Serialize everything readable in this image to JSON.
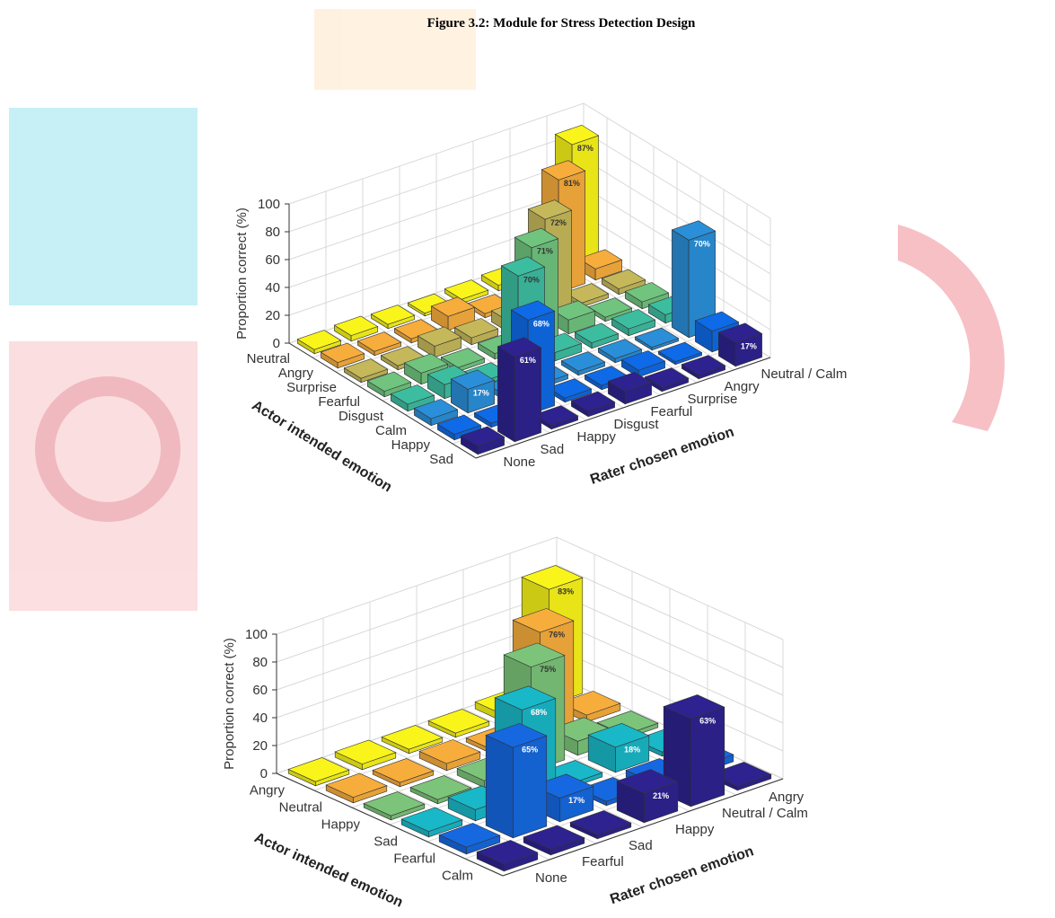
{
  "caption": "Figure 3.2: Module for Stress Detection Design",
  "chart_data": [
    {
      "type": "bar3d",
      "z_label": "Proportion correct (%)",
      "x_label": "Actor intended emotion",
      "y_label": "Rater chosen emotion",
      "x_categories": [
        "Neutral",
        "Angry",
        "Surprise",
        "Fearful",
        "Disgust",
        "Calm",
        "Happy",
        "Sad"
      ],
      "y_categories": [
        "None",
        "Sad",
        "Happy",
        "Disgust",
        "Fearful",
        "Surprise",
        "Angry",
        "Neutral / Calm"
      ],
      "colors": [
        "#f9f51a",
        "#f7ad3c",
        "#c5b85a",
        "#70c47e",
        "#3dbda0",
        "#2a8fd8",
        "#0e6ae6",
        "#2d2290"
      ],
      "values": [
        [
          3,
          4,
          3,
          2,
          3,
          4,
          4,
          87
        ],
        [
          4,
          3,
          3,
          10,
          3,
          5,
          81,
          8
        ],
        [
          3,
          3,
          8,
          5,
          8,
          72,
          3,
          4
        ],
        [
          4,
          8,
          3,
          4,
          71,
          10,
          3,
          5
        ],
        [
          5,
          10,
          3,
          70,
          6,
          4,
          5,
          6
        ],
        [
          5,
          17,
          4,
          3,
          3,
          3,
          2,
          70
        ],
        [
          4,
          3,
          68,
          3,
          3,
          5,
          2,
          15
        ],
        [
          6,
          61,
          3,
          4,
          9,
          3,
          3,
          17
        ]
      ],
      "value_labels": [
        [
          null,
          null,
          null,
          null,
          null,
          null,
          null,
          "87%"
        ],
        [
          null,
          null,
          null,
          null,
          null,
          null,
          "81%",
          null
        ],
        [
          null,
          null,
          null,
          null,
          null,
          "72%",
          null,
          null
        ],
        [
          null,
          null,
          null,
          null,
          "71%",
          null,
          null,
          null
        ],
        [
          null,
          null,
          null,
          "70%",
          null,
          null,
          null,
          null
        ],
        [
          null,
          "17%",
          null,
          null,
          null,
          null,
          null,
          "70%"
        ],
        [
          null,
          null,
          "68%",
          null,
          null,
          null,
          null,
          null
        ],
        [
          null,
          "61%",
          null,
          null,
          null,
          null,
          null,
          "17%"
        ]
      ],
      "zlim": [
        0,
        100
      ],
      "zticks": [
        0,
        20,
        40,
        60,
        80,
        100
      ],
      "grid": true
    },
    {
      "type": "bar3d",
      "z_label": "Proportion correct (%)",
      "x_label": "Actor intended emotion",
      "y_label": "Rater chosen emotion",
      "x_categories": [
        "Angry",
        "Neutral",
        "Happy",
        "Sad",
        "Fearful",
        "Calm"
      ],
      "y_categories": [
        "None",
        "Fearful",
        "Sad",
        "Happy",
        "Neutral / Calm",
        "Angry"
      ],
      "colors": [
        "#f9f51a",
        "#f7ad3c",
        "#7cc47a",
        "#19b8c8",
        "#1668e0",
        "#2d2290"
      ],
      "values": [
        [
          3,
          4,
          3,
          3,
          5,
          83
        ],
        [
          4,
          3,
          5,
          3,
          76,
          5
        ],
        [
          3,
          3,
          5,
          75,
          10,
          3
        ],
        [
          4,
          8,
          68,
          3,
          18,
          3
        ],
        [
          5,
          65,
          17,
          3,
          5,
          5
        ],
        [
          5,
          4,
          3,
          21,
          63,
          3
        ]
      ],
      "value_labels": [
        [
          null,
          null,
          null,
          null,
          null,
          "83%"
        ],
        [
          null,
          null,
          null,
          null,
          "76%",
          null
        ],
        [
          null,
          null,
          null,
          "75%",
          null,
          null
        ],
        [
          null,
          null,
          "68%",
          null,
          "18%",
          null
        ],
        [
          null,
          "65%",
          "17%",
          null,
          null,
          null
        ],
        [
          null,
          null,
          null,
          "21%",
          "63%",
          null
        ]
      ],
      "zlim": [
        0,
        100
      ],
      "zticks": [
        0,
        20,
        40,
        60,
        80,
        100
      ],
      "grid": true
    }
  ]
}
